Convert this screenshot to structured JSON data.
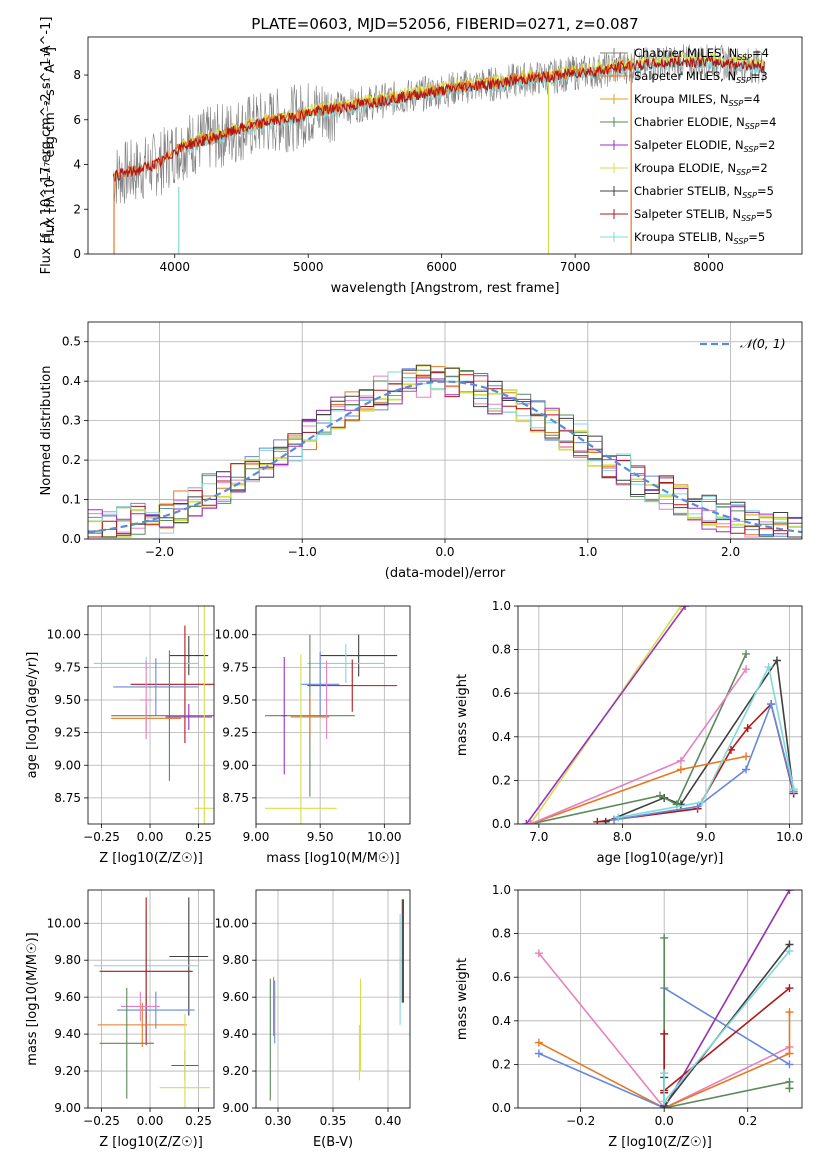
{
  "title": "PLATE=0603, MJD=52056, FIBERID=0271, z=0.087",
  "colors": {
    "chabrier_miles": "#808080",
    "salpeter_miles": "#e87722",
    "kroupa_miles": "#e0a020",
    "chabrier_elodie": "#5a8a5a",
    "salpeter_elodie": "#9a30c0",
    "kroupa_elodie": "#d4df50",
    "chabrier_stelib": "#404040",
    "salpeter_stelib": "#b01818",
    "kroupa_stelib": "#80d8d8",
    "normal": "#5b8bd6",
    "pink": "#e880c0",
    "blue": "#6688dd",
    "orange": "#e87722",
    "green": "#5a8a5a",
    "yellow": "#d4df50",
    "grid": "#b0b0b0"
  },
  "legend_spectrum": [
    {
      "label": "Chabrier MILES, N",
      "sub": "SSP",
      "suffix": "=4",
      "color": "#808080"
    },
    {
      "label": "Salpeter MILES, N",
      "sub": "SSP",
      "suffix": "=3",
      "color": "#e87722"
    },
    {
      "label": "Kroupa MILES, N",
      "sub": "SSP",
      "suffix": "=4",
      "color": "#e0a020"
    },
    {
      "label": "Chabrier ELODIE, N",
      "sub": "SSP",
      "suffix": "=4",
      "color": "#5a8a5a"
    },
    {
      "label": "Salpeter ELODIE, N",
      "sub": "SSP",
      "suffix": "=2",
      "color": "#9a30c0"
    },
    {
      "label": "Kroupa ELODIE, N",
      "sub": "SSP",
      "suffix": "=2",
      "color": "#d4df50"
    },
    {
      "label": "Chabrier STELIB, N",
      "sub": "SSP",
      "suffix": "=5",
      "color": "#404040"
    },
    {
      "label": "Salpeter STELIB, N",
      "sub": "SSP",
      "suffix": "=5",
      "color": "#b01818"
    },
    {
      "label": "Kroupa STELIB, N",
      "sub": "SSP",
      "suffix": "=5",
      "color": "#80d8d8"
    }
  ],
  "legend_hist": "𝒩(0, 1)",
  "chart_data": [
    {
      "type": "line",
      "title": "PLATE=0603, MJD=52056, FIBERID=0271, z=0.087",
      "xlabel": "wavelength [Angstrom, rest frame]",
      "ylabel": "Flux [f_λ 10^-17 erg cm^-2 s^-1 A^-1]",
      "xlim": [
        3350,
        8700
      ],
      "ylim": [
        0,
        9.7
      ],
      "xticks": [
        4000,
        5000,
        6000,
        7000,
        8000
      ],
      "yticks": [
        0,
        2,
        4,
        6,
        8
      ],
      "x": [
        3550,
        3700,
        3900,
        4000,
        4100,
        4300,
        4500,
        4700,
        4900,
        5000,
        5200,
        5400,
        5600,
        5800,
        6000,
        6200,
        6400,
        6600,
        6800,
        7000,
        7200,
        7400,
        7600,
        7800,
        8000,
        8200,
        8400
      ],
      "series_model": [
        3.5,
        3.7,
        4.1,
        4.6,
        4.9,
        5.2,
        5.6,
        5.9,
        6.1,
        6.3,
        6.5,
        6.7,
        6.9,
        7.1,
        7.3,
        7.5,
        7.6,
        7.8,
        7.9,
        8.1,
        8.2,
        8.4,
        8.5,
        8.6,
        8.6,
        8.5,
        8.4
      ]
    },
    {
      "type": "step",
      "xlabel": "(data-model)/error",
      "ylabel": "Normed distribution",
      "xlim": [
        -2.5,
        2.5
      ],
      "ylim": [
        0,
        0.55
      ],
      "xticks": [
        -2,
        -1,
        0,
        1,
        2
      ],
      "yticks": [
        0.0,
        0.1,
        0.2,
        0.3,
        0.4,
        0.5
      ],
      "bin_edges": [
        -2.5,
        -2.4,
        -2.3,
        -2.2,
        -2.1,
        -2.0,
        -1.9,
        -1.8,
        -1.7,
        -1.6,
        -1.5,
        -1.4,
        -1.3,
        -1.2,
        -1.1,
        -1.0,
        -0.9,
        -0.8,
        -0.7,
        -0.6,
        -0.5,
        -0.4,
        -0.3,
        -0.2,
        -0.1,
        0.0,
        0.1,
        0.2,
        0.3,
        0.4,
        0.5,
        0.6,
        0.7,
        0.8,
        0.9,
        1.0,
        1.1,
        1.2,
        1.3,
        1.4,
        1.5,
        1.6,
        1.7,
        1.8,
        1.9,
        2.0,
        2.1,
        2.2,
        2.3,
        2.4,
        2.5
      ],
      "counts": [
        0.03,
        0.03,
        0.04,
        0.05,
        0.03,
        0.05,
        0.08,
        0.09,
        0.12,
        0.13,
        0.15,
        0.17,
        0.19,
        0.21,
        0.24,
        0.27,
        0.29,
        0.32,
        0.34,
        0.36,
        0.37,
        0.38,
        0.39,
        0.4,
        0.41,
        0.4,
        0.39,
        0.38,
        0.36,
        0.35,
        0.33,
        0.31,
        0.29,
        0.27,
        0.25,
        0.23,
        0.2,
        0.18,
        0.15,
        0.13,
        0.12,
        0.1,
        0.09,
        0.07,
        0.06,
        0.05,
        0.04,
        0.04,
        0.03,
        0.02
      ],
      "series": [
        {
          "name": "𝒩(0, 1)",
          "type": "gaussian"
        }
      ]
    },
    {
      "type": "errorbar",
      "xlabel": "Z [log10(Z/Z☉)]",
      "ylabel": "age [log10(age/yr)]",
      "xlim": [
        -0.32,
        0.33
      ],
      "ylim": [
        8.55,
        10.22
      ],
      "xticks": [
        -0.25,
        0.0,
        0.25
      ],
      "yticks": [
        8.75,
        9.0,
        9.25,
        9.5,
        9.75,
        10.0
      ],
      "points": [
        {
          "x": 0.2,
          "y": 9.84,
          "xerr": 0.1,
          "yerr": 0.15,
          "color": "#404040"
        },
        {
          "x": -0.02,
          "y": 9.78,
          "xerr": 0.27,
          "yerr": 0.05,
          "color": "#80d8d8"
        },
        {
          "x": 0.18,
          "y": 9.62,
          "xerr": 0.28,
          "yerr": 0.45,
          "color": "#b01818"
        },
        {
          "x": 0.03,
          "y": 9.6,
          "xerr": 0.22,
          "yerr": 0.22,
          "color": "#6688dd"
        },
        {
          "x": 0.1,
          "y": 9.38,
          "xerr": 0.3,
          "yerr": 0.5,
          "color": "#5a8a5a"
        },
        {
          "x": -0.02,
          "y": 9.36,
          "xerr": 0.18,
          "yerr": 0.1,
          "color": "#e87722"
        },
        {
          "x": 0.2,
          "y": 9.37,
          "xerr": 0.12,
          "yerr": 0.1,
          "color": "#9a30c0"
        },
        {
          "x": 0.28,
          "y": 8.67,
          "xerr": 0.05,
          "yerr": 1.6,
          "color": "#d4df50"
        },
        {
          "x": -0.02,
          "y": 9.5,
          "xerr": 0.03,
          "yerr": 0.3,
          "color": "#e880c0"
        }
      ]
    },
    {
      "type": "errorbar",
      "xlabel": "mass [log10(M/M☉)]",
      "ylabel": "",
      "xlim": [
        9.0,
        10.2
      ],
      "ylim": [
        8.55,
        10.22
      ],
      "xticks": [
        9.0,
        9.5,
        10.0
      ],
      "yticks": [
        8.75,
        9.0,
        9.25,
        9.5,
        9.75,
        10.0
      ],
      "points": [
        {
          "x": 9.8,
          "y": 9.84,
          "xerr": 0.3,
          "yerr": 0.16,
          "color": "#404040"
        },
        {
          "x": 9.7,
          "y": 9.78,
          "xerr": 0.3,
          "yerr": 0.15,
          "color": "#80d8d8"
        },
        {
          "x": 9.75,
          "y": 9.61,
          "xerr": 0.35,
          "yerr": 0.2,
          "color": "#b01818"
        },
        {
          "x": 9.5,
          "y": 9.62,
          "xerr": 0.15,
          "yerr": 0.25,
          "color": "#6688dd"
        },
        {
          "x": 9.42,
          "y": 9.38,
          "xerr": 0.35,
          "yerr": 0.62,
          "color": "#5a8a5a"
        },
        {
          "x": 9.42,
          "y": 9.37,
          "xerr": 0.15,
          "yerr": 0.15,
          "color": "#e87722"
        },
        {
          "x": 9.22,
          "y": 9.38,
          "xerr": 0.02,
          "yerr": 0.45,
          "color": "#9a30c0"
        },
        {
          "x": 9.35,
          "y": 8.67,
          "xerr": 0.28,
          "yerr": 1.18,
          "color": "#d4df50"
        },
        {
          "x": 9.55,
          "y": 9.5,
          "xerr": 0.02,
          "yerr": 0.3,
          "color": "#e880c0"
        }
      ]
    },
    {
      "type": "line",
      "xlabel": "age [log10(age/yr)]",
      "ylabel": "mass weight",
      "xlim": [
        6.75,
        10.15
      ],
      "ylim": [
        0,
        1.0
      ],
      "xticks": [
        7,
        8,
        9,
        10
      ],
      "yticks": [
        0.0,
        0.2,
        0.4,
        0.6,
        0.8,
        1.0
      ],
      "series": [
        {
          "name": "Kroupa ELODIE",
          "color": "#d4df50",
          "x": [
            6.9,
            8.7
          ],
          "y": [
            0.0,
            1.0
          ]
        },
        {
          "name": "Salpeter ELODIE",
          "color": "#9a30c0",
          "x": [
            6.85,
            8.75
          ],
          "y": [
            0.0,
            1.0
          ]
        },
        {
          "name": "Salpeter STELIB",
          "color": "#b01818",
          "x": [
            7.7,
            8.9,
            9.3,
            9.5,
            9.78,
            10.05
          ],
          "y": [
            0.01,
            0.07,
            0.34,
            0.44,
            0.55,
            0.14
          ]
        },
        {
          "name": "Chabrier STELIB",
          "color": "#404040",
          "x": [
            7.8,
            8.5,
            8.7,
            9.85,
            10.05
          ],
          "y": [
            0.01,
            0.12,
            0.09,
            0.75,
            0.14
          ]
        },
        {
          "name": "Chabrier ELODIE",
          "color": "#5a8a5a",
          "x": [
            6.9,
            8.45,
            8.65,
            9.48
          ],
          "y": [
            0.0,
            0.13,
            0.09,
            0.78
          ]
        },
        {
          "name": "Kroupa MILES",
          "color": "#e87722",
          "x": [
            6.9,
            8.7,
            9.48
          ],
          "y": [
            0.0,
            0.25,
            0.31
          ]
        },
        {
          "name": "Chabrier MILES",
          "color": "#6688dd",
          "x": [
            7.9,
            8.9,
            9.48,
            9.78,
            10.05
          ],
          "y": [
            0.02,
            0.08,
            0.25,
            0.55,
            0.15
          ]
        },
        {
          "name": "Kroupa STELIB",
          "color": "#80d8d8",
          "x": [
            7.95,
            8.95,
            9.75,
            10.05
          ],
          "y": [
            0.03,
            0.1,
            0.72,
            0.16
          ]
        },
        {
          "name": "Salpeter MILES",
          "color": "#e880c0",
          "x": [
            6.9,
            8.7,
            9.48
          ],
          "y": [
            0.0,
            0.29,
            0.71
          ]
        }
      ]
    },
    {
      "type": "errorbar",
      "xlabel": "Z [log10(Z/Z☉)]",
      "ylabel": "mass [log10(M/M☉)]",
      "xlim": [
        -0.32,
        0.33
      ],
      "ylim": [
        9.0,
        10.18
      ],
      "xticks": [
        -0.25,
        0.0,
        0.25
      ],
      "yticks": [
        9.0,
        9.2,
        9.4,
        9.6,
        9.8,
        10.0
      ],
      "points": [
        {
          "x": 0.2,
          "y": 9.82,
          "xerr": 0.1,
          "yerr": 0.32,
          "color": "#404040"
        },
        {
          "x": -0.02,
          "y": 9.77,
          "xerr": 0.27,
          "yerr": 0.3,
          "color": "#80d8d8"
        },
        {
          "x": -0.02,
          "y": 9.74,
          "xerr": 0.24,
          "yerr": 0.4,
          "color": "#b01818"
        },
        {
          "x": 0.03,
          "y": 9.53,
          "xerr": 0.2,
          "yerr": 0.1,
          "color": "#6688dd"
        },
        {
          "x": -0.05,
          "y": 9.55,
          "xerr": 0.1,
          "yerr": 0.08,
          "color": "#e880c0"
        },
        {
          "x": -0.04,
          "y": 9.45,
          "xerr": 0.23,
          "yerr": 0.12,
          "color": "#e87722"
        },
        {
          "x": -0.12,
          "y": 9.35,
          "xerr": 0.14,
          "yerr": 0.3,
          "color": "#5a8a5a"
        },
        {
          "x": 0.18,
          "y": 9.23,
          "xerr": 0.07,
          "yerr": 0.08,
          "color": "#9a30c0"
        },
        {
          "x": 0.18,
          "y": 9.11,
          "xerr": 0.13,
          "yerr": 0.4,
          "color": "#d4df50"
        }
      ]
    },
    {
      "type": "errorbar",
      "xlabel": "E(B-V)",
      "ylabel": "",
      "xlim": [
        0.28,
        0.42
      ],
      "ylim": [
        9.0,
        10.18
      ],
      "xticks": [
        0.3,
        0.35,
        0.4
      ],
      "yticks": [
        9.0,
        9.2,
        9.4,
        9.6,
        9.8,
        10.0
      ],
      "points": [
        {
          "x": 0.413,
          "y": 9.85,
          "xerr": 0.0,
          "yerr": 0.28,
          "color": "#404040"
        },
        {
          "x": 0.411,
          "y": 9.75,
          "xerr": 0.0,
          "yerr": 0.3,
          "color": "#80d8d8"
        },
        {
          "x": 0.414,
          "y": 9.85,
          "xerr": 0.0,
          "yerr": 0.28,
          "color": "#b01818"
        },
        {
          "x": 0.297,
          "y": 9.52,
          "xerr": 0.0,
          "yerr": 0.17,
          "color": "#6688dd"
        },
        {
          "x": 0.296,
          "y": 9.55,
          "xerr": 0.0,
          "yerr": 0.16,
          "color": "#e87722"
        },
        {
          "x": 0.293,
          "y": 9.37,
          "xerr": 0.0,
          "yerr": 0.33,
          "color": "#5a8a5a"
        },
        {
          "x": 0.375,
          "y": 9.45,
          "xerr": 0.0,
          "yerr": 0.25,
          "color": "#d4df50"
        },
        {
          "x": 0.374,
          "y": 9.3,
          "xerr": 0.0,
          "yerr": 0.15,
          "color": "#d4df50"
        }
      ]
    },
    {
      "type": "line",
      "xlabel": "Z [log10(Z/Z☉)]",
      "ylabel": "mass weight",
      "xlim": [
        -0.35,
        0.33
      ],
      "ylim": [
        0,
        1.0
      ],
      "xticks": [
        -0.2,
        0.0,
        0.2
      ],
      "yticks": [
        0.0,
        0.2,
        0.4,
        0.6,
        0.8,
        1.0
      ],
      "series": [
        {
          "name": "Salpeter MILES",
          "color": "#e880c0",
          "x": [
            -0.3,
            0.0,
            0.3
          ],
          "y": [
            0.71,
            0.0,
            0.28
          ]
        },
        {
          "name": "Kroupa MILES",
          "color": "#e87722",
          "x": [
            -0.3,
            0.0,
            0.3,
            0.3
          ],
          "y": [
            0.3,
            0.0,
            0.25,
            0.44
          ]
        },
        {
          "name": "Chabrier MILES",
          "color": "#6688dd",
          "x": [
            -0.3,
            0.0,
            0.0,
            0.3
          ],
          "y": [
            0.25,
            0.0,
            0.55,
            0.2
          ]
        },
        {
          "name": "Chabrier ELODIE",
          "color": "#5a8a5a",
          "x": [
            0.0,
            0.0,
            0.3,
            0.3
          ],
          "y": [
            0.78,
            0.0,
            0.12,
            0.09
          ]
        },
        {
          "name": "Kroupa ELODIE",
          "color": "#d4df50",
          "x": [
            0.0,
            0.3
          ],
          "y": [
            0.0,
            1.0
          ]
        },
        {
          "name": "Salpeter ELODIE",
          "color": "#9a30c0",
          "x": [
            0.0,
            0.3
          ],
          "y": [
            0.0,
            1.0
          ]
        },
        {
          "name": "Salpeter STELIB",
          "color": "#b01818",
          "x": [
            0.0,
            0.0,
            0.0,
            0.3
          ],
          "y": [
            0.34,
            0.07,
            0.08,
            0.55
          ]
        },
        {
          "name": "Chabrier STELIB",
          "color": "#404040",
          "x": [
            0.0,
            0.0,
            0.3
          ],
          "y": [
            0.14,
            0.01,
            0.75
          ]
        },
        {
          "name": "Kroupa STELIB",
          "color": "#80d8d8",
          "x": [
            0.0,
            0.0,
            0.3
          ],
          "y": [
            0.16,
            0.03,
            0.72
          ]
        }
      ]
    }
  ]
}
